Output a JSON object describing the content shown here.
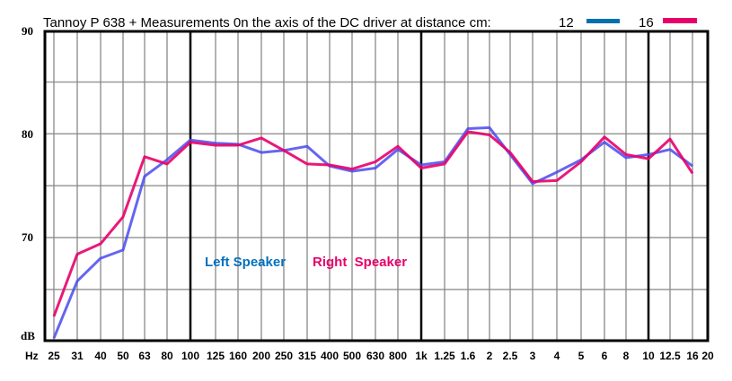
{
  "chart_data": {
    "type": "line",
    "title": "Tannoy P 638 +  Measurements 0n the axis of the DC driver at distance cm:",
    "xlabel": "Hz",
    "ylabel": "dB",
    "ylim": [
      60,
      90
    ],
    "yticks": [
      "90",
      "80",
      "70"
    ],
    "grid": true,
    "legend_placement": "top-right",
    "categories": [
      "25",
      "31",
      "40",
      "50",
      "63",
      "80",
      "100",
      "125",
      "160",
      "200",
      "250",
      "315",
      "400",
      "500",
      "630",
      "800",
      "1k",
      "1.25",
      "1.6",
      "2",
      "2.5",
      "3",
      "4",
      "5",
      "6",
      "8",
      "10",
      "12.5",
      "16",
      "20"
    ],
    "series": [
      {
        "name": "12",
        "color": "#4a4aee",
        "legend_color": "#0070b0",
        "values": [
          60.3,
          65.8,
          68.0,
          68.8,
          75.9,
          77.5,
          79.4,
          79.1,
          79.0,
          78.2,
          78.4,
          78.8,
          76.9,
          76.4,
          76.7,
          78.5,
          77.0,
          77.3,
          80.5,
          80.6,
          78.0,
          75.2,
          76.3,
          77.5,
          79.2,
          77.7,
          78.0,
          78.5,
          76.9,
          null
        ]
      },
      {
        "name": "16",
        "color": "#e8006a",
        "legend_color": "#e8006a",
        "values": [
          62.4,
          68.4,
          69.4,
          72.0,
          77.8,
          77.1,
          79.2,
          78.9,
          78.9,
          79.6,
          78.4,
          77.1,
          77.0,
          76.6,
          77.3,
          78.8,
          76.7,
          77.1,
          80.2,
          79.9,
          78.2,
          75.4,
          75.5,
          77.3,
          79.7,
          78.0,
          77.6,
          79.5,
          76.2,
          null
        ]
      }
    ],
    "annotations": [
      {
        "text": "Left Speaker",
        "color": "#0070c0"
      },
      {
        "text": "Right  Speaker",
        "color": "#e8006a"
      }
    ]
  }
}
